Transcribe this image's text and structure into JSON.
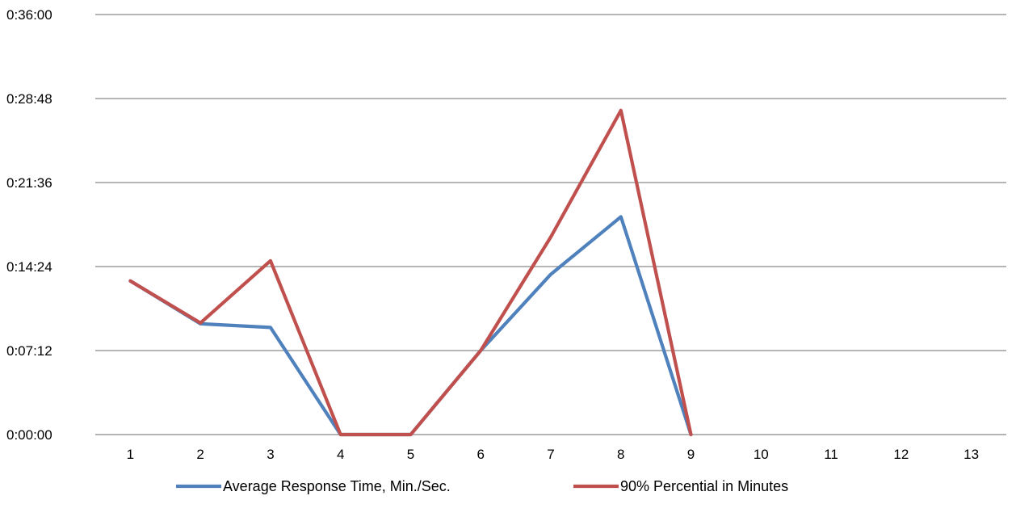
{
  "chart_data": {
    "type": "line",
    "title": "",
    "xlabel": "",
    "ylabel": "",
    "x": [
      1,
      2,
      3,
      4,
      5,
      6,
      7,
      8,
      9,
      10,
      11,
      12,
      13
    ],
    "y_ticks": [
      "0:00:00",
      "0:07:12",
      "0:14:24",
      "0:21:36",
      "0:28:48",
      "0:36:00"
    ],
    "ylim": [
      "0:00:00",
      "0:36:00"
    ],
    "grid": "horizontal",
    "legend_position": "bottom",
    "series": [
      {
        "name": "Average Response Time, Min./Sec.",
        "color": "#4F81BD",
        "values": [
          "0:13:10",
          "0:09:30",
          "0:09:11",
          "0:00:00",
          "0:00:00",
          "0:07:12",
          "0:13:44",
          "0:18:40",
          "0:00:00",
          null,
          null,
          null,
          null
        ]
      },
      {
        "name": "90% Percential    in Minutes",
        "color": "#C0504D",
        "values": [
          "0:13:10",
          "0:09:34",
          "0:14:54",
          "0:00:00",
          "0:00:00",
          "0:07:12",
          "0:16:56",
          "0:27:47",
          "0:00:00",
          null,
          null,
          null,
          null
        ]
      }
    ]
  }
}
